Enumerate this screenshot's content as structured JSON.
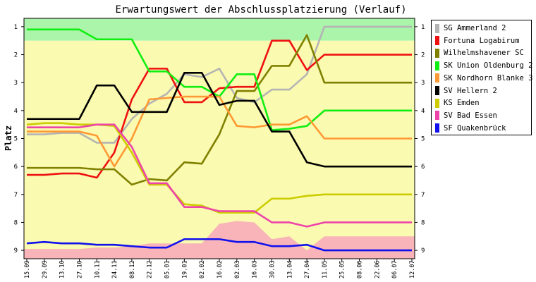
{
  "chart_data": {
    "type": "line",
    "title": "Erwartungswert der Abschlussplatzierung (Verlauf)",
    "ylabel": "Platz",
    "xlabel": "",
    "ylim": [
      0.7,
      9.3
    ],
    "y_ticks": [
      1,
      2,
      3,
      4,
      5,
      6,
      7,
      8,
      9
    ],
    "grid": false,
    "legend_position": "right",
    "categories": [
      "15.09",
      "29.09",
      "13.10",
      "27.10",
      "10.11",
      "24.11",
      "08.12",
      "22.12",
      "05.01",
      "19.01",
      "02.02",
      "16.02",
      "02.03",
      "16.03",
      "30.03",
      "13.04",
      "27.04",
      "11.05",
      "25.05",
      "08.06",
      "22.06",
      "06.07",
      "12.07"
    ],
    "zones": [
      {
        "from": 0.7,
        "to": 1.5,
        "color": "#aaf5aa"
      },
      {
        "from": 1.5,
        "to": 9.3,
        "color": "#fafab0"
      }
    ],
    "pink_area_top": [
      8.95,
      8.95,
      8.95,
      8.95,
      8.9,
      8.9,
      8.85,
      8.75,
      8.75,
      8.75,
      8.75,
      8.05,
      7.95,
      8.0,
      8.6,
      8.5,
      9.0,
      8.5,
      8.5,
      8.5,
      8.5,
      8.5,
      8.5
    ],
    "pink_color": "#f8b4b8",
    "series": [
      {
        "name": "SG Ammerland 2",
        "color": "#b4b4b4",
        "values": [
          4.85,
          4.85,
          4.8,
          4.8,
          5.15,
          5.15,
          4.3,
          3.75,
          3.4,
          2.7,
          2.8,
          2.5,
          3.55,
          3.7,
          3.25,
          3.25,
          2.7,
          1.0,
          1.0,
          1.0,
          1.0,
          1.0,
          1.0
        ]
      },
      {
        "name": "Fortuna Logabirum",
        "color": "#ee1111",
        "values": [
          6.3,
          6.3,
          6.25,
          6.25,
          6.4,
          5.5,
          3.6,
          2.5,
          2.5,
          3.7,
          3.7,
          3.2,
          3.15,
          3.15,
          1.5,
          1.5,
          2.55,
          2.0,
          2.0,
          2.0,
          2.0,
          2.0,
          2.0
        ]
      },
      {
        "name": "Wilhelmshavener SC",
        "color": "#808000",
        "values": [
          6.05,
          6.05,
          6.05,
          6.05,
          6.1,
          6.1,
          6.65,
          6.45,
          6.5,
          5.85,
          5.9,
          4.85,
          3.3,
          3.3,
          2.4,
          2.4,
          1.3,
          3.0,
          3.0,
          3.0,
          3.0,
          3.0,
          3.0
        ]
      },
      {
        "name": "SK Union Oldenburg 2",
        "color": "#11ee11",
        "values": [
          1.1,
          1.1,
          1.1,
          1.1,
          1.45,
          1.45,
          1.45,
          2.6,
          2.6,
          3.15,
          3.15,
          3.5,
          2.7,
          2.7,
          4.7,
          4.65,
          4.55,
          4.0,
          4.0,
          4.0,
          4.0,
          4.0,
          4.0
        ]
      },
      {
        "name": "SK Nordhorn Blanke 3",
        "color": "#ff9933",
        "values": [
          4.75,
          4.75,
          4.75,
          4.75,
          4.9,
          6.0,
          5.0,
          3.6,
          3.55,
          3.5,
          3.5,
          3.5,
          4.55,
          4.6,
          4.5,
          4.5,
          4.2,
          5.0,
          5.0,
          5.0,
          5.0,
          5.0,
          5.0
        ]
      },
      {
        "name": "SV Hellern 2",
        "color": "#000000",
        "values": [
          4.3,
          4.3,
          4.3,
          4.3,
          3.1,
          3.1,
          4.05,
          4.05,
          4.05,
          2.65,
          2.65,
          3.8,
          3.65,
          3.65,
          4.75,
          4.75,
          5.85,
          6.0,
          6.0,
          6.0,
          6.0,
          6.0,
          6.0
        ]
      },
      {
        "name": "KS Emden",
        "color": "#cccc00",
        "values": [
          4.5,
          4.45,
          4.45,
          4.5,
          4.5,
          4.55,
          5.5,
          6.65,
          6.65,
          7.35,
          7.4,
          7.65,
          7.65,
          7.65,
          7.15,
          7.15,
          7.05,
          7.0,
          7.0,
          7.0,
          7.0,
          7.0,
          7.0
        ]
      },
      {
        "name": "SV Bad Essen",
        "color": "#ee44aa",
        "values": [
          4.6,
          4.6,
          4.6,
          4.6,
          4.5,
          4.5,
          5.3,
          6.6,
          6.6,
          7.45,
          7.45,
          7.6,
          7.6,
          7.6,
          8.0,
          8.0,
          8.15,
          8.0,
          8.0,
          8.0,
          8.0,
          8.0,
          8.0
        ]
      },
      {
        "name": "SF Quakenbrück",
        "color": "#1111ee",
        "values": [
          8.75,
          8.7,
          8.75,
          8.75,
          8.8,
          8.8,
          8.85,
          8.9,
          8.9,
          8.6,
          8.6,
          8.6,
          8.7,
          8.7,
          8.85,
          8.85,
          8.8,
          9.0,
          9.0,
          9.0,
          9.0,
          9.0,
          9.0
        ]
      }
    ]
  }
}
